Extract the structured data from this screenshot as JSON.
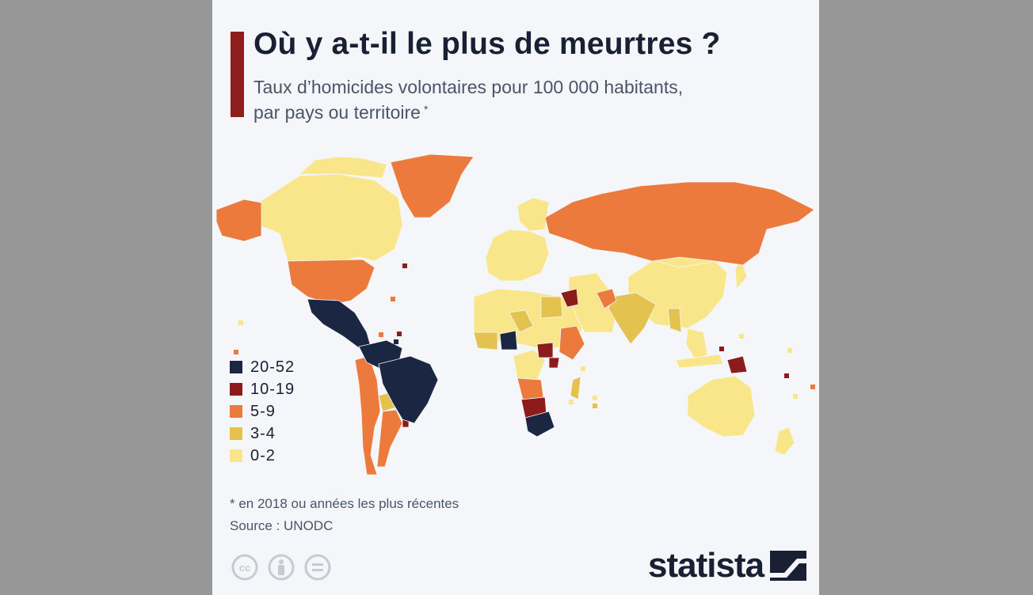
{
  "title": "Où y a-t-il le plus de meurtres ?",
  "subtitle_line1": "Taux d’homicides volontaires pour 100 000 habitants,",
  "subtitle_line2": "par pays ou territoire",
  "subtitle_marker": "*",
  "legend": [
    {
      "label": "20-52",
      "color": "#1b2742"
    },
    {
      "label": "10-19",
      "color": "#8e1b1b"
    },
    {
      "label": "5-9",
      "color": "#ec7a3d"
    },
    {
      "label": "3-4",
      "color": "#e4c24f"
    },
    {
      "label": "0-2",
      "color": "#fae68a"
    }
  ],
  "footnote": "* en 2018 ou années les plus récentes",
  "source": "Source : UNODC",
  "brand": "statista",
  "icons": [
    "cc-icon",
    "by-icon",
    "nd-icon",
    "statista-logo-icon"
  ],
  "chart_data": {
    "type": "choropleth",
    "categories": [
      "20-52",
      "10-19",
      "5-9",
      "3-4",
      "0-2"
    ],
    "regions": {
      "20-52": [
        "Mexico",
        "Central America",
        "Colombia",
        "Venezuela",
        "Brazil",
        "Nigeria",
        "South Africa",
        "Lesotho"
      ],
      "10-19": [
        "Iraq",
        "South Sudan",
        "Uganda",
        "Zambia",
        "Namibia",
        "Botswana",
        "Uruguay",
        "Papua New Guinea"
      ],
      "5-9": [
        "Alaska",
        "USA",
        "Greenland",
        "Russia",
        "Peru",
        "Argentina",
        "Chile",
        "Ethiopia",
        "Angola",
        "Iran",
        "Central African Republic"
      ],
      "3-4": [
        "India",
        "Mali",
        "Chad",
        "Egypt",
        "Myanmar",
        "Bolivia",
        "Madagascar"
      ],
      "0-2": [
        "Canada",
        "Western Europe",
        "China",
        "Mongolia",
        "Australia",
        "Algeria",
        "Libya",
        "Saudi Arabia",
        "Japan"
      ]
    }
  }
}
